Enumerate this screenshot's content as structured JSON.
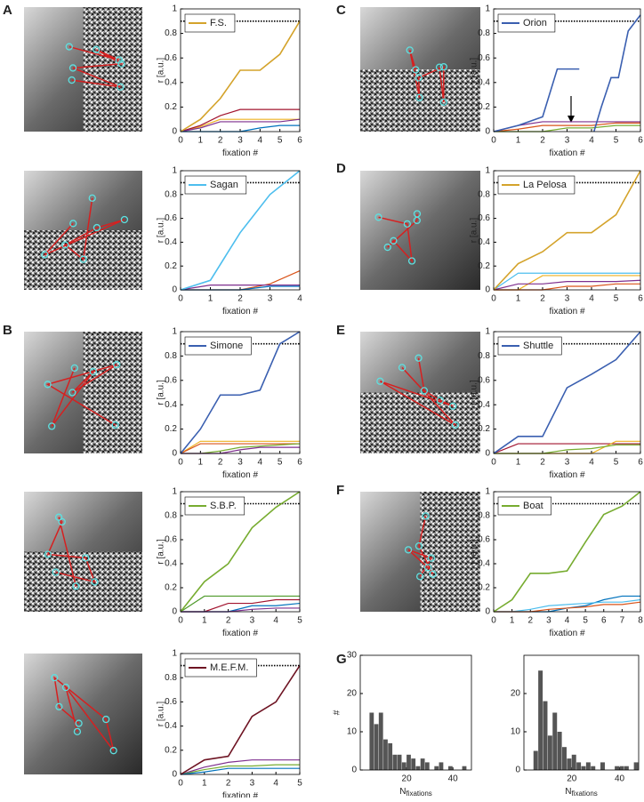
{
  "chart_data": [
    {
      "type": "line",
      "panel": "A",
      "x": [
        0,
        1,
        2,
        3,
        4,
        5,
        6
      ],
      "xlim": [
        0,
        6
      ],
      "xticks": [
        0,
        1,
        2,
        3,
        4,
        5,
        6
      ],
      "ylim": [
        0,
        1
      ],
      "yticks": [
        0,
        0.2,
        0.4,
        0.6,
        0.8,
        1
      ],
      "x_label": "fixation #",
      "y_label": "r [a.u.]",
      "threshold": 0.9,
      "legend": "upper left",
      "series": [
        {
          "color": "#EDB120",
          "values": [
            0,
            0.04,
            0.1,
            0.1,
            0.1,
            0.1,
            0.1
          ]
        },
        {
          "color": "#A2142F",
          "values": [
            0,
            0.05,
            0.13,
            0.18,
            0.18,
            0.18,
            0.18
          ]
        },
        {
          "color": "#7E2F8E",
          "values": [
            0,
            0.03,
            0.08,
            0.08,
            0.08,
            0.08,
            0.1
          ]
        },
        {
          "color": "#0072BD",
          "values": [
            0,
            0,
            0,
            0,
            0.03,
            0.05,
            0.05
          ]
        },
        {
          "name": "F.S.",
          "color": "#D4A32B",
          "values": [
            0,
            0.1,
            0.27,
            0.5,
            0.5,
            0.63,
            0.9
          ]
        }
      ]
    },
    {
      "type": "line",
      "x": [
        0,
        1,
        2,
        3,
        4
      ],
      "xlim": [
        0,
        4
      ],
      "xticks": [
        0,
        1,
        2,
        3,
        4
      ],
      "ylim": [
        0,
        1
      ],
      "yticks": [
        0,
        0.2,
        0.4,
        0.6,
        0.8,
        1
      ],
      "x_label": "fixation #",
      "y_label": "r [a.u.]",
      "threshold": 0.9,
      "legend": "upper left",
      "series": [
        {
          "color": "#D95319",
          "values": [
            0,
            0,
            0,
            0.05,
            0.16
          ]
        },
        {
          "color": "#7E2F8E",
          "values": [
            0,
            0.04,
            0.04,
            0.04,
            0.04
          ]
        },
        {
          "color": "#0072BD",
          "values": [
            0,
            0,
            0,
            0.03,
            0.03
          ]
        },
        {
          "name": "Sagan",
          "color": "#4DBEEE",
          "values": [
            0,
            0.08,
            0.48,
            0.8,
            1
          ]
        }
      ]
    },
    {
      "type": "line",
      "panel": "B",
      "x": [
        0,
        1,
        2,
        3,
        4,
        5,
        6
      ],
      "xlim": [
        0,
        6
      ],
      "xticks": [
        0,
        1,
        2,
        3,
        4,
        5,
        6
      ],
      "ylim": [
        0,
        1
      ],
      "yticks": [
        0,
        0.2,
        0.4,
        0.6,
        0.8,
        1
      ],
      "x_label": "fixation #",
      "y_label": "r [a.u.]",
      "threshold": 0.9,
      "legend": "upper left",
      "series": [
        {
          "color": "#EDB120",
          "values": [
            0,
            0.1,
            0.1,
            0.1,
            0.1,
            0.1,
            0.1
          ]
        },
        {
          "color": "#D95319",
          "values": [
            0,
            0.08,
            0.08,
            0.08,
            0.08,
            0.08,
            0.08
          ]
        },
        {
          "color": "#77AC30",
          "values": [
            0,
            0,
            0.02,
            0.05,
            0.06,
            0.07,
            0.08
          ]
        },
        {
          "color": "#7E2F8E",
          "values": [
            0,
            0,
            0,
            0.03,
            0.05,
            0.05,
            0.05
          ]
        },
        {
          "name": "Simone",
          "color": "#3A5FB0",
          "values": [
            0,
            0.2,
            0.48,
            0.48,
            0.52,
            0.9,
            1
          ]
        }
      ]
    },
    {
      "type": "line",
      "x": [
        0,
        1,
        2,
        3,
        4,
        5
      ],
      "xlim": [
        0,
        5
      ],
      "xticks": [
        0,
        1,
        2,
        3,
        4,
        5
      ],
      "ylim": [
        0,
        1
      ],
      "yticks": [
        0,
        0.2,
        0.4,
        0.6,
        0.8,
        1
      ],
      "x_label": "fixation #",
      "y_label": "r [a.u.]",
      "threshold": 0.9,
      "legend": "upper left",
      "series": [
        {
          "color": "#4E9A2A",
          "values": [
            0,
            0.13,
            0.13,
            0.13,
            0.13,
            0.13
          ]
        },
        {
          "color": "#A2142F",
          "values": [
            0,
            0,
            0.07,
            0.07,
            0.1,
            0.1
          ]
        },
        {
          "color": "#0072BD",
          "values": [
            0,
            0,
            0,
            0.05,
            0.05,
            0.07
          ]
        },
        {
          "color": "#7E2F8E",
          "values": [
            0,
            0,
            0,
            0.02,
            0.03,
            0.03
          ]
        },
        {
          "name": "S.B.P.",
          "color": "#77AC30",
          "values": [
            0,
            0.25,
            0.4,
            0.7,
            0.87,
            1
          ]
        }
      ]
    },
    {
      "type": "line",
      "x": [
        0,
        1,
        2,
        3,
        4,
        5
      ],
      "xlim": [
        0,
        5
      ],
      "xticks": [
        0,
        1,
        2,
        3,
        4,
        5
      ],
      "ylim": [
        0,
        1
      ],
      "yticks": [
        0,
        0.2,
        0.4,
        0.6,
        0.8,
        1
      ],
      "x_label": "fixation #",
      "y_label": "r [a.u.]",
      "threshold": 0.9,
      "legend": "upper left",
      "series": [
        {
          "color": "#7E2F8E",
          "values": [
            0,
            0.06,
            0.1,
            0.12,
            0.12,
            0.12
          ]
        },
        {
          "color": "#77AC30",
          "values": [
            0,
            0.04,
            0.07,
            0.07,
            0.08,
            0.08
          ]
        },
        {
          "color": "#0072BD",
          "values": [
            0,
            0.02,
            0.05,
            0.05,
            0.05,
            0.05
          ]
        },
        {
          "name": "M.E.F.M.",
          "color": "#6E1423",
          "values": [
            0,
            0.12,
            0.15,
            0.48,
            0.6,
            0.9
          ]
        }
      ]
    },
    {
      "type": "line",
      "panel": "C",
      "x": [
        0,
        1,
        2,
        3,
        4,
        5,
        6
      ],
      "xlim": [
        0,
        6
      ],
      "xticks": [
        0,
        1,
        2,
        3,
        4,
        5,
        6
      ],
      "ylim": [
        0,
        1
      ],
      "yticks": [
        0,
        0.2,
        0.4,
        0.6,
        0.8,
        1
      ],
      "x_label": "fixation #",
      "y_label": "r [a.u.]",
      "threshold": 0.9,
      "legend": "upper left",
      "series": [
        {
          "color": "#7E2F8E",
          "values": [
            0,
            0.05,
            0.08,
            0.08,
            0.08,
            0.08,
            0.08
          ]
        },
        {
          "color": "#D95319",
          "values": [
            0,
            0.02,
            0.05,
            0.05,
            0.05,
            0.07,
            0.07
          ]
        },
        {
          "color": "#77AC30",
          "values": [
            0,
            0,
            0,
            0.03,
            0.03,
            0.05,
            0.05
          ]
        },
        {
          "name": "Orion",
          "color": "#3A5FB0",
          "x": [
            0,
            1,
            2,
            2.6,
            3.5,
            3.8,
            4.1,
            4.4,
            4.8,
            5.1,
            5.5,
            6
          ],
          "values": [
            0,
            0.05,
            0.12,
            0.51,
            0.51,
            null,
            0,
            0.2,
            0.44,
            0.44,
            0.82,
            0.95
          ]
        }
      ]
    },
    {
      "type": "line",
      "panel": "D",
      "x": [
        0,
        1,
        2,
        3,
        4,
        5,
        6
      ],
      "xlim": [
        0,
        6
      ],
      "xticks": [
        0,
        1,
        2,
        3,
        4,
        5,
        6
      ],
      "ylim": [
        0,
        1
      ],
      "yticks": [
        0,
        0.2,
        0.4,
        0.6,
        0.8,
        1
      ],
      "x_label": "fixation #",
      "y_label": "r [a.u.]",
      "threshold": 0.9,
      "legend": "upper left",
      "series": [
        {
          "color": "#4DBEEE",
          "values": [
            0,
            0.14,
            0.14,
            0.14,
            0.14,
            0.14,
            0.14
          ]
        },
        {
          "color": "#EDB120",
          "values": [
            0,
            0,
            0.12,
            0.12,
            0.12,
            0.12,
            0.12
          ]
        },
        {
          "color": "#7E2F8E",
          "values": [
            0,
            0.05,
            0.05,
            0.07,
            0.07,
            0.07,
            0.08
          ]
        },
        {
          "color": "#D95319",
          "values": [
            0,
            0,
            0,
            0.03,
            0.03,
            0.05,
            0.05
          ]
        },
        {
          "name": "La Pelosa",
          "color": "#D4A32B",
          "values": [
            0,
            0.22,
            0.32,
            0.48,
            0.48,
            0.63,
            1
          ]
        }
      ]
    },
    {
      "type": "line",
      "panel": "E",
      "x": [
        0,
        1,
        2,
        3,
        4,
        5,
        6
      ],
      "xlim": [
        0,
        6
      ],
      "xticks": [
        0,
        1,
        2,
        3,
        4,
        5,
        6
      ],
      "ylim": [
        0,
        1
      ],
      "yticks": [
        0,
        0.2,
        0.4,
        0.6,
        0.8,
        1
      ],
      "x_label": "fixation #",
      "y_label": "r [a.u.]",
      "threshold": 0.9,
      "legend": "upper left",
      "series": [
        {
          "color": "#A2142F",
          "values": [
            0,
            0.08,
            0.08,
            0.08,
            0.08,
            0.08,
            0.08
          ]
        },
        {
          "color": "#EDB120",
          "values": [
            0,
            0,
            0,
            0,
            0,
            0.1,
            0.1
          ]
        },
        {
          "color": "#77AC30",
          "values": [
            0,
            0,
            0,
            0.03,
            0.04,
            0.07,
            0.07
          ]
        },
        {
          "name": "Shuttle",
          "color": "#3A5FB0",
          "values": [
            0,
            0.14,
            0.14,
            0.54,
            0.65,
            0.77,
            1
          ]
        }
      ]
    },
    {
      "type": "line",
      "panel": "F",
      "x": [
        0,
        1,
        2,
        3,
        4,
        5,
        6,
        7,
        8
      ],
      "xlim": [
        0,
        8
      ],
      "xticks": [
        0,
        1,
        2,
        3,
        4,
        5,
        6,
        7,
        8
      ],
      "ylim": [
        0,
        1
      ],
      "yticks": [
        0,
        0.2,
        0.4,
        0.6,
        0.8,
        1
      ],
      "x_label": "fixation #",
      "y_label": "r [a.u.]",
      "threshold": 0.9,
      "legend": "upper left",
      "series": [
        {
          "color": "#0072BD",
          "values": [
            0,
            0,
            0,
            0,
            0.03,
            0.05,
            0.1,
            0.13,
            0.13
          ]
        },
        {
          "color": "#4DBEEE",
          "values": [
            0,
            0,
            0.02,
            0.05,
            0.06,
            0.07,
            0.08,
            0.08,
            0.1
          ]
        },
        {
          "color": "#D95319",
          "values": [
            0,
            0,
            0,
            0.02,
            0.03,
            0.04,
            0.06,
            0.06,
            0.08
          ]
        },
        {
          "name": "Boat",
          "color": "#77AC30",
          "values": [
            0,
            0.1,
            0.32,
            0.32,
            0.34,
            0.58,
            0.81,
            0.88,
            1
          ]
        }
      ]
    },
    {
      "type": "histogram",
      "panel": "G",
      "bins": [
        4,
        6,
        8,
        10,
        12,
        14,
        16,
        18,
        20,
        22,
        24,
        26,
        28,
        30,
        32,
        34,
        36,
        38,
        40,
        42,
        44,
        46
      ],
      "counts": [
        15,
        12,
        15,
        8,
        7,
        4,
        4,
        2,
        4,
        3,
        1,
        3,
        2,
        0,
        1,
        2,
        0,
        1,
        0,
        0,
        1
      ],
      "color": "#555555",
      "xlim": [
        0,
        48
      ],
      "xticks": [
        20,
        40
      ],
      "ylim": [
        0,
        30
      ],
      "yticks": [
        0,
        10,
        20,
        30
      ],
      "y_label": "#",
      "x_label": "N",
      "x_label_subscript": "fixations"
    },
    {
      "type": "histogram",
      "bins": [
        4,
        6,
        8,
        10,
        12,
        14,
        16,
        18,
        20,
        22,
        24,
        26,
        28,
        30,
        32,
        34,
        36,
        38,
        40,
        42,
        44,
        46,
        48
      ],
      "counts": [
        5,
        26,
        18,
        9,
        15,
        10,
        6,
        3,
        4,
        2,
        1,
        2,
        1,
        0,
        2,
        0,
        0,
        1,
        1,
        1,
        0,
        2
      ],
      "color": "#555555",
      "xlim": [
        0,
        48
      ],
      "xticks": [
        20,
        40
      ],
      "ylim": [
        0,
        30
      ],
      "yticks": [
        0,
        10,
        20
      ],
      "x_label": "N",
      "x_label_subscript": "fixations"
    }
  ]
}
